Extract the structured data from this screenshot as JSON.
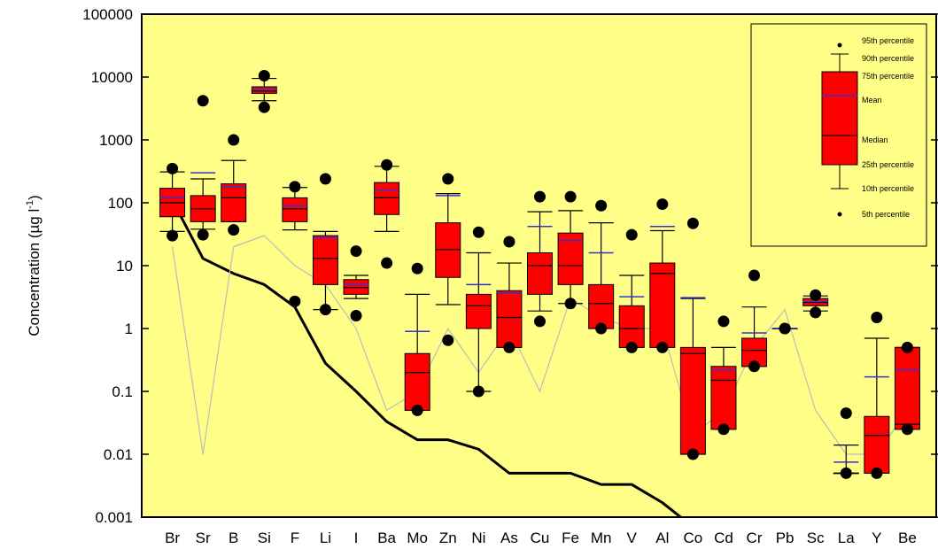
{
  "chart_data": {
    "type": "box",
    "y_label": "Concentration  (µg l",
    "y_label_sup": "-1",
    "y_label_end": ")",
    "log_scale": true,
    "ylim": [
      0.001,
      100000
    ],
    "yticks": [
      0.001,
      0.01,
      0.1,
      1,
      10,
      100,
      1000,
      10000,
      100000
    ],
    "background": "#ffff88",
    "box_color": "#ff0000",
    "mean_color": "#3333cc",
    "categories": [
      "Br",
      "Sr",
      "B",
      "Si",
      "F",
      "Li",
      "I",
      "Ba",
      "Mo",
      "Zn",
      "Ni",
      "As",
      "Cu",
      "Fe",
      "Mn",
      "V",
      "Al",
      "Co",
      "Cd",
      "Cr",
      "Pb",
      "Sc",
      "La",
      "Y",
      "Be"
    ],
    "p5": [
      30,
      31,
      37,
      3300,
      2.7,
      2,
      1.6,
      11,
      0.05,
      0.65,
      0.1,
      0.5,
      1.3,
      2.5,
      1,
      0.5,
      0.5,
      0.01,
      0.025,
      0.25,
      1,
      1.8,
      0.005,
      0.005,
      0.025
    ],
    "p10": [
      35,
      38,
      50,
      4200,
      37,
      2,
      3,
      35,
      0.05,
      2.4,
      0.1,
      0.5,
      1.9,
      2.5,
      1,
      0.5,
      0.5,
      0.01,
      0.025,
      0.25,
      1,
      1.9,
      0.005,
      0.005,
      0.025
    ],
    "q1": [
      60,
      50,
      50,
      5500,
      50,
      5,
      3.5,
      65,
      0.05,
      6.5,
      1,
      0.5,
      3.5,
      5,
      1,
      0.5,
      0.5,
      0.01,
      0.025,
      0.25,
      1,
      2.3,
      0.005,
      0.005,
      0.025
    ],
    "median": [
      100,
      80,
      120,
      6000,
      80,
      13,
      4.5,
      120,
      0.2,
      18,
      2.3,
      1.5,
      10,
      10,
      2.5,
      1,
      7.5,
      0.4,
      0.15,
      0.45,
      1,
      2.6,
      0.005,
      0.02,
      0.03
    ],
    "mean": [
      120,
      300,
      180,
      6500,
      90,
      28,
      5,
      160,
      0.9,
      130,
      5,
      3.7,
      42,
      25,
      16,
      3.2,
      42,
      3.1,
      0.22,
      0.85,
      1,
      2.7,
      0.0075,
      0.17,
      0.22
    ],
    "q3": [
      170,
      130,
      200,
      7000,
      120,
      30,
      6,
      210,
      0.4,
      48,
      3.5,
      4,
      16,
      33,
      5,
      2.3,
      11,
      0.5,
      0.25,
      0.7,
      1,
      3,
      0.005,
      0.04,
      0.5
    ],
    "p90": [
      310,
      240,
      470,
      9500,
      175,
      35,
      7,
      380,
      3.5,
      140,
      16,
      11,
      72,
      75,
      48,
      7,
      36,
      3,
      0.5,
      2.2,
      1,
      3.3,
      0.014,
      0.7,
      0.5
    ],
    "p95": [
      350,
      4200,
      1000,
      10500,
      180,
      240,
      17,
      400,
      9,
      240,
      34,
      24,
      125,
      125,
      90,
      31,
      95,
      47,
      1.3,
      7,
      1,
      3.4,
      0.045,
      1.5,
      0.5
    ],
    "lines": [
      {
        "color": "#000000",
        "values": [
          110,
          13,
          7.5,
          5,
          2.2,
          0.28,
          0.1,
          0.033,
          0.017,
          0.017,
          0.012,
          0.005,
          0.005,
          0.005,
          0.0033,
          0.0033,
          0.0017,
          0.0007,
          null,
          null,
          null,
          null,
          null,
          null,
          null
        ]
      },
      {
        "color": "#bbbbbb",
        "values": [
          20,
          0.01,
          20,
          30,
          10,
          5,
          1,
          0.05,
          0.1,
          1,
          0.2,
          1,
          0.1,
          3,
          1.5,
          1,
          1,
          0.02,
          0.05,
          0.5,
          2,
          0.05,
          0.01,
          0.01,
          0.05
        ]
      }
    ],
    "legend": [
      "95th percentile",
      "90th percentile",
      "75th percentile",
      "Mean",
      "Median",
      "25th percentile",
      "10th percentile",
      "5th percentile"
    ]
  }
}
